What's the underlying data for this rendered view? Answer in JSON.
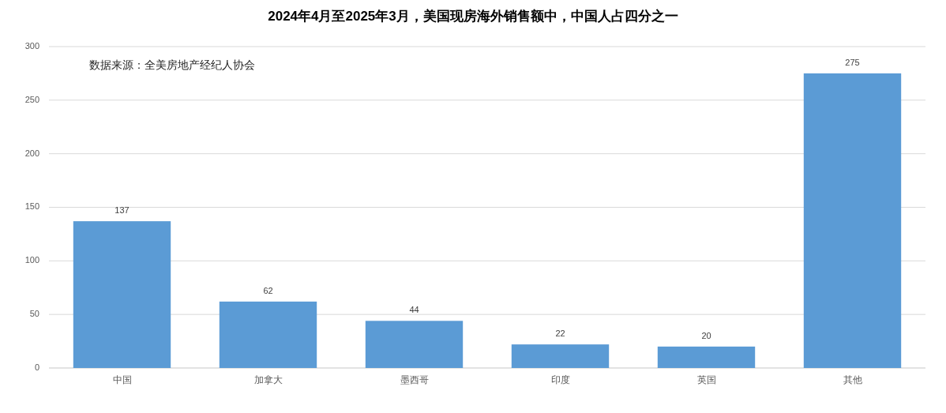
{
  "chart_data": {
    "type": "bar",
    "title": "2024年4月至2025年3月，美国现房海外销售额中，中国人占四分之一",
    "annotations": [
      "数据来源：全美房地产经纪人协会"
    ],
    "categories": [
      "中国",
      "加拿大",
      "墨西哥",
      "印度",
      "英国",
      "其他"
    ],
    "values": [
      137,
      62,
      44,
      22,
      20,
      275
    ],
    "color": "#5b9bd5",
    "ylim": [
      0,
      300
    ],
    "yticks": [
      0,
      50,
      100,
      150,
      200,
      250,
      300
    ],
    "grid": "y",
    "data_labels": true
  }
}
